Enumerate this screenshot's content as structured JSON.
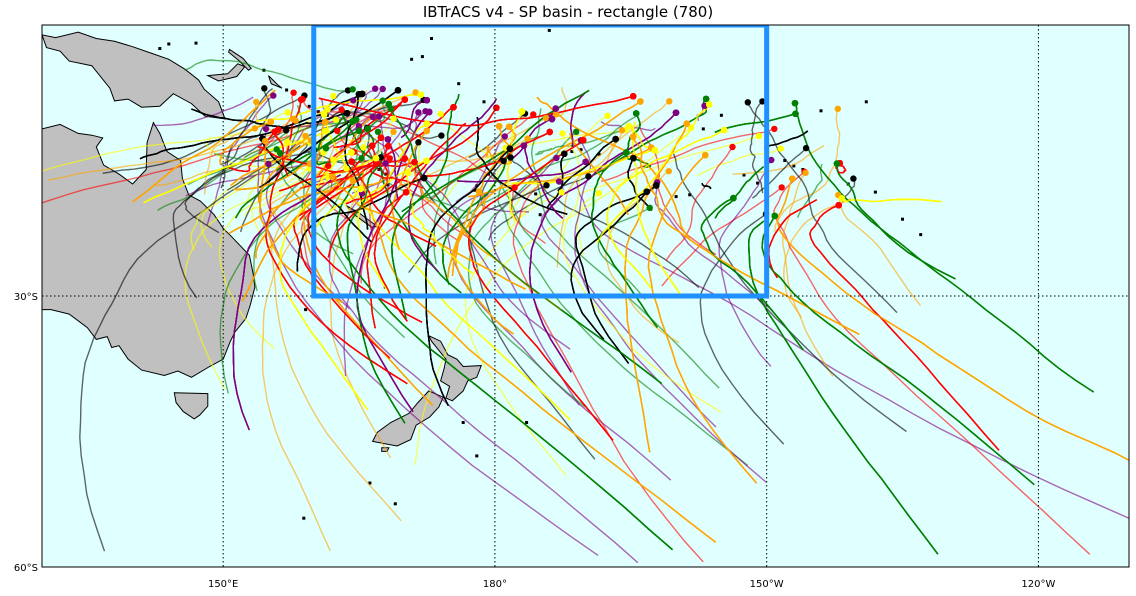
{
  "title": "IBTrACS v4 - SP basin - rectangle (780)",
  "map": {
    "projection": "equirectangular",
    "lon_range": [
      130,
      250
    ],
    "lat_range": [
      -60,
      0
    ],
    "colors": {
      "ocean": "#e0ffff",
      "land": "#c0c0c0",
      "coast": "#000000",
      "selection_box": "#1e90ff"
    },
    "longitude_ticks": [
      {
        "lon": 150,
        "label": "150°E"
      },
      {
        "lon": 180,
        "label": "180°"
      },
      {
        "lon": 210,
        "label": "150°W"
      },
      {
        "lon": 240,
        "label": "120°W"
      }
    ],
    "latitude_ticks": [
      {
        "lat": -30,
        "label": "30°S"
      },
      {
        "lat": -60,
        "label": "60°S"
      }
    ],
    "selection_rectangle": {
      "lon_min": 160,
      "lon_max": 210,
      "lat_min": -30,
      "lat_max": 0
    },
    "track_colors": [
      "#ffff00",
      "#ffa500",
      "#ff0000",
      "#800080",
      "#008000",
      "#000000"
    ],
    "track_count": 780
  }
}
